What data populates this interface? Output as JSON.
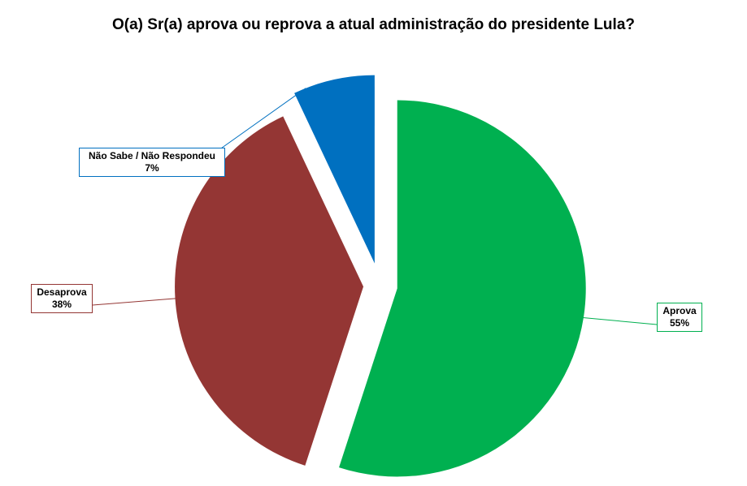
{
  "chart_data": {
    "type": "pie",
    "title": "O(a) Sr(a) aprova ou reprova a atual administração do presidente Lula?",
    "slices": [
      {
        "name": "Aprova",
        "value": 55,
        "value_label": "55%",
        "color": "#00b050"
      },
      {
        "name": "Desaprova",
        "value": 38,
        "value_label": "38%",
        "color": "#943634"
      },
      {
        "name": "Não Sabe / Não Respondeu",
        "value": 7,
        "value_label": "7%",
        "color": "#0070c0"
      }
    ],
    "exploded": true,
    "legend": "none",
    "start_angle": "12 o'clock",
    "direction": "clockwise"
  }
}
